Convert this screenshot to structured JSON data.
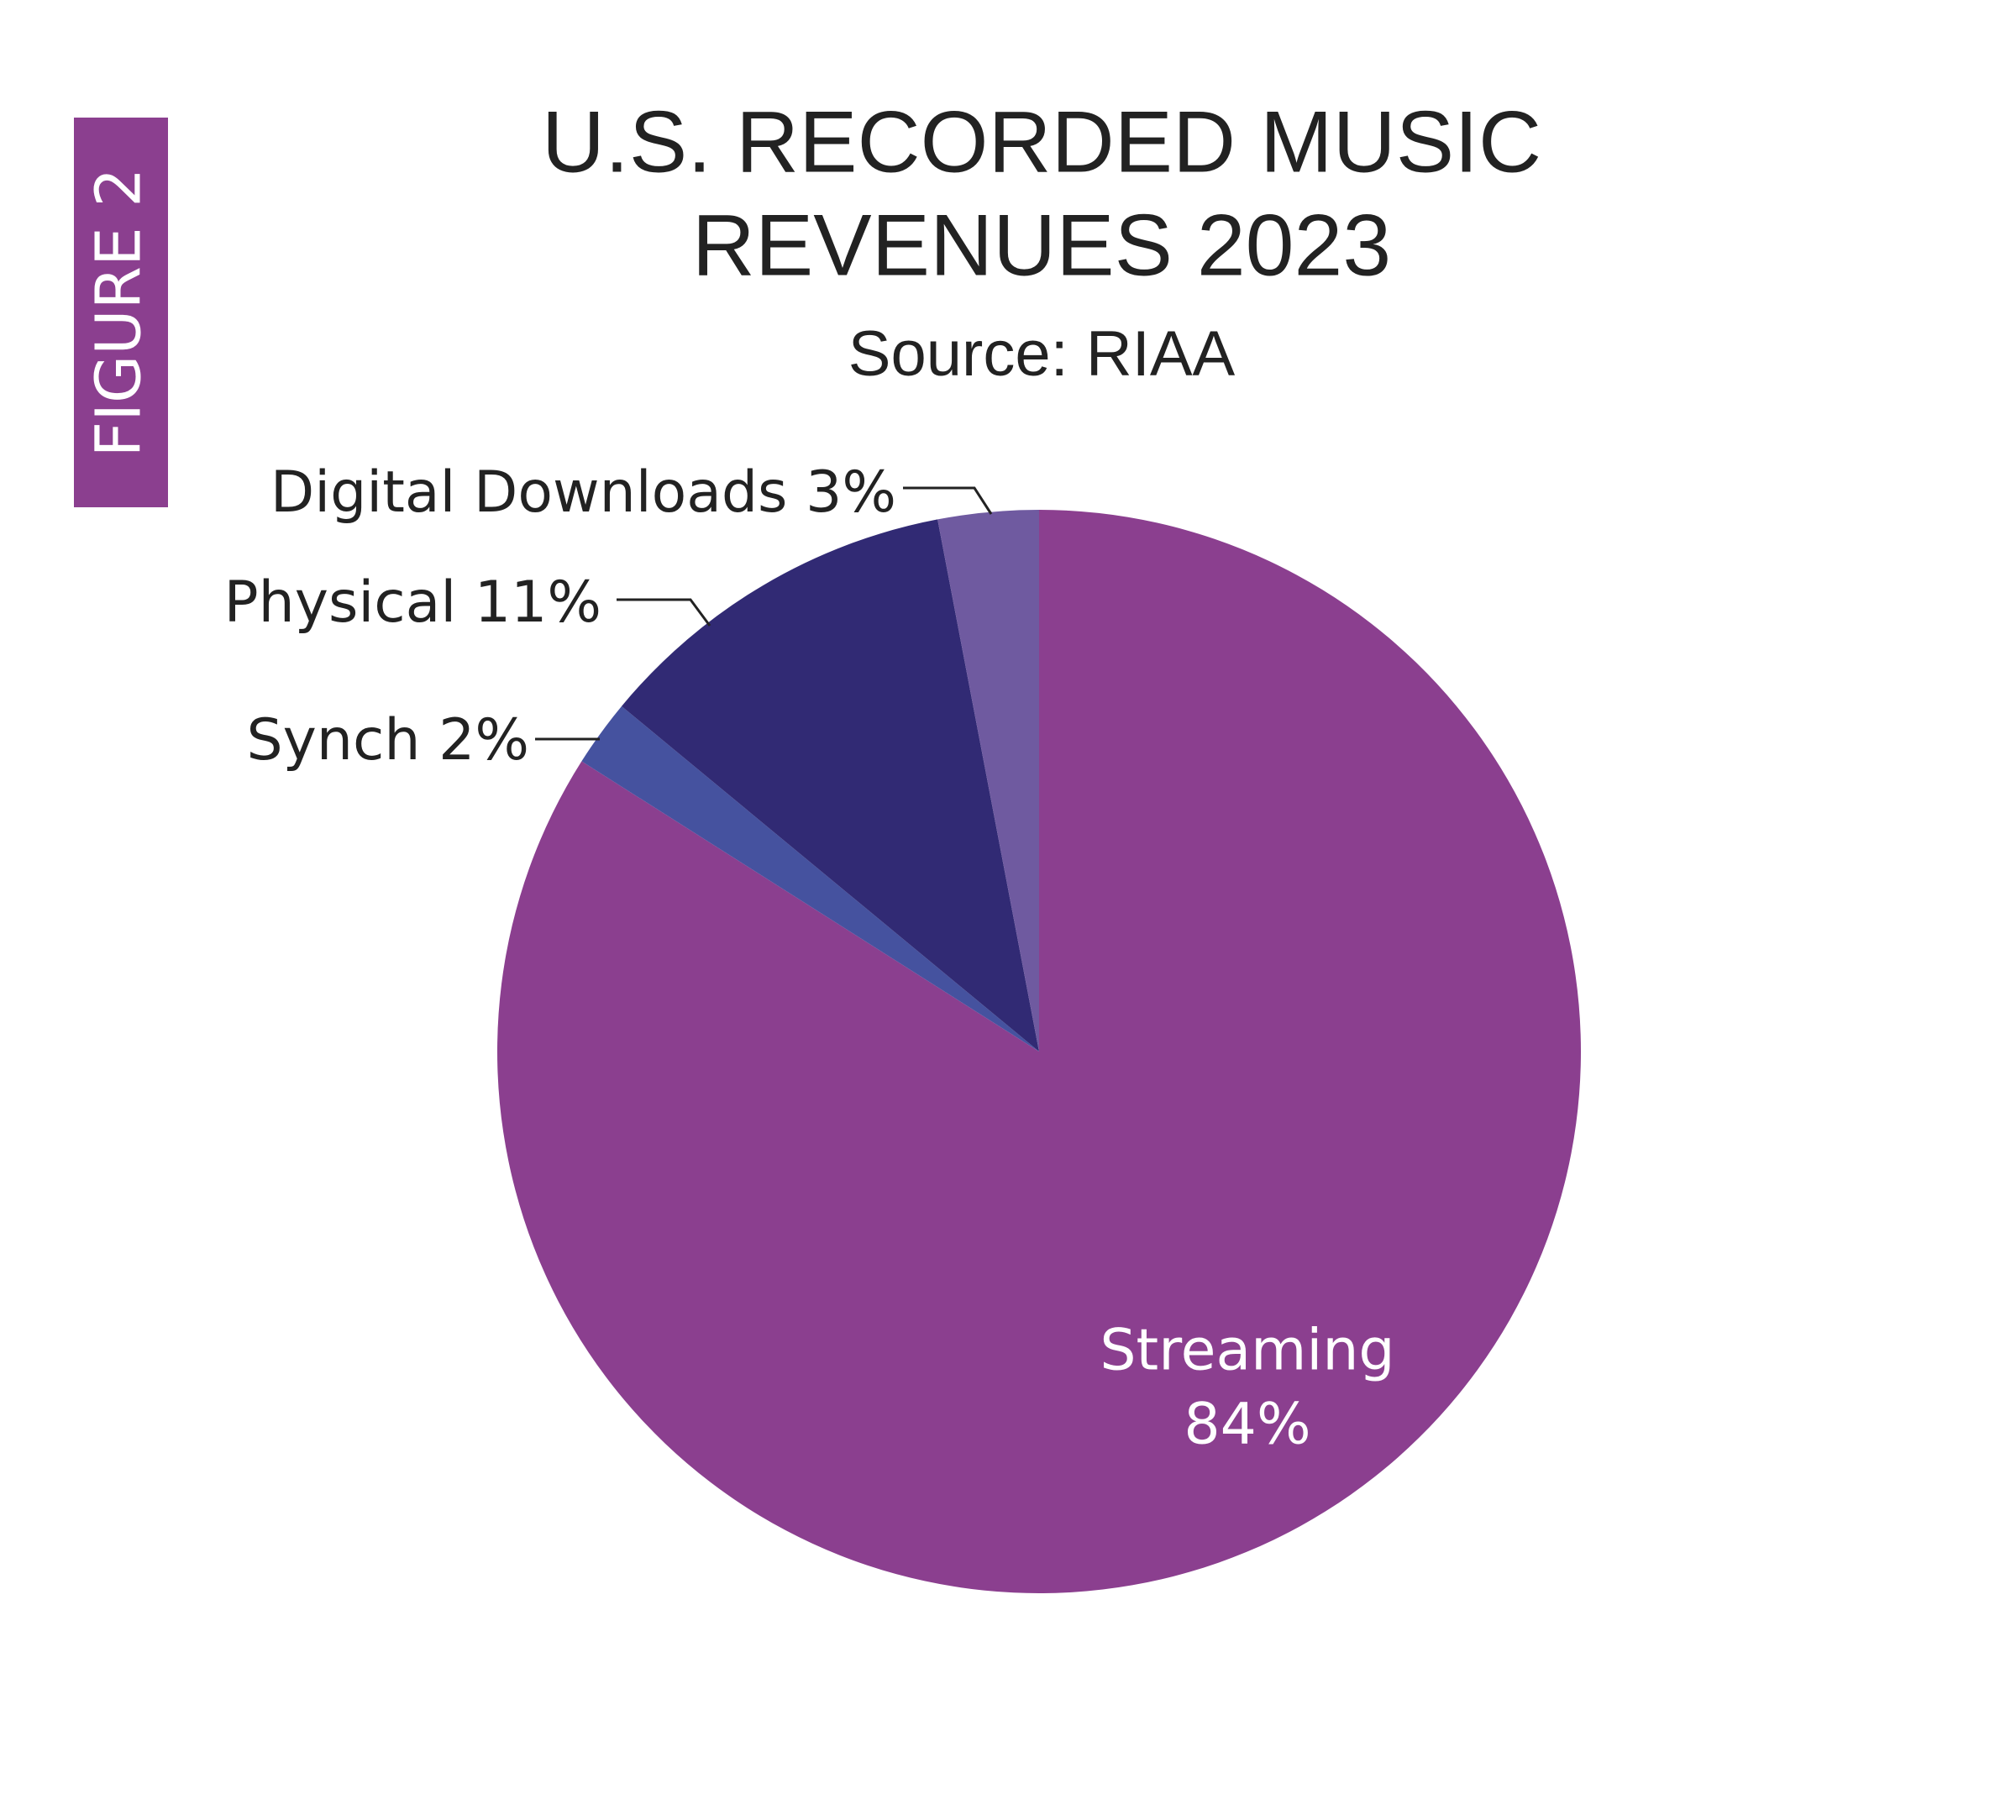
{
  "chart_data": {
    "type": "pie",
    "figure_label": "FIGURE 2",
    "title": [
      "U.S. RECORDED MUSIC",
      "REVENUES 2023"
    ],
    "subtitle": "Source: RIAA",
    "categories": [
      "Streaming",
      "Synch",
      "Physical",
      "Digital Downloads"
    ],
    "values": [
      84,
      2,
      11,
      3
    ],
    "value_labels": [
      "84%",
      "2%",
      "11%",
      "3%"
    ],
    "colors": [
      "#8b3f8f",
      "#45529f",
      "#312a74",
      "#6f5aa0"
    ]
  }
}
